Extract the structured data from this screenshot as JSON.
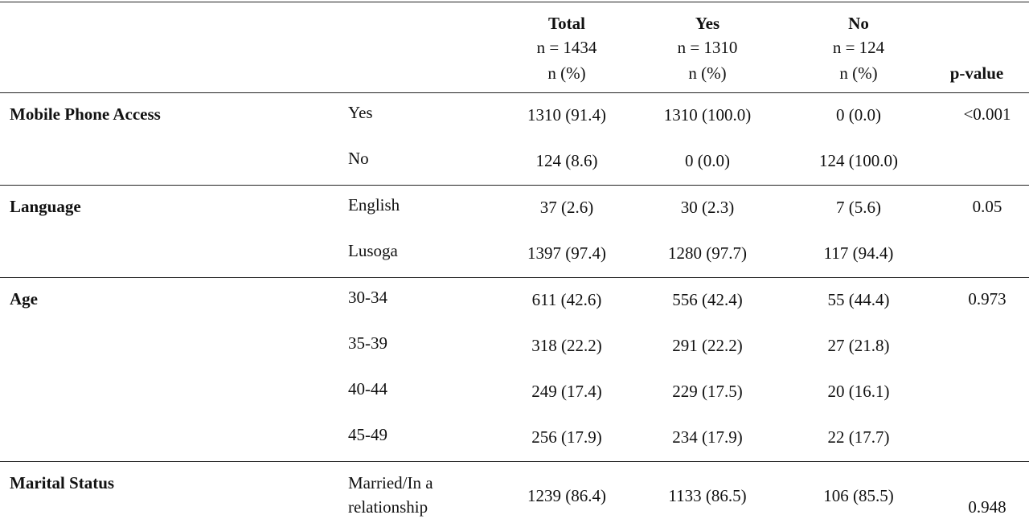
{
  "table": {
    "columns": [
      {
        "title": "Total",
        "n": "n = 1434",
        "unit": "n (%)"
      },
      {
        "title": "Yes",
        "n": "n = 1310",
        "unit": "n (%)"
      },
      {
        "title": "No",
        "n": "n = 124",
        "unit": "n (%)"
      }
    ],
    "p_value_header": "p-value",
    "groups": [
      {
        "label": "Mobile Phone Access",
        "p_value": "<0.001",
        "rows": [
          {
            "level": "Yes",
            "cells": [
              "1310 (91.4)",
              "1310 (100.0)",
              "0 (0.0)"
            ]
          },
          {
            "level": "No",
            "cells": [
              "124 (8.6)",
              "0 (0.0)",
              "124 (100.0)"
            ]
          }
        ]
      },
      {
        "label": "Language",
        "p_value": "0.05",
        "rows": [
          {
            "level": "English",
            "cells": [
              "37 (2.6)",
              "30 (2.3)",
              "7 (5.6)"
            ]
          },
          {
            "level": "Lusoga",
            "cells": [
              "1397 (97.4)",
              "1280 (97.7)",
              "117 (94.4)"
            ]
          }
        ]
      },
      {
        "label": "Age",
        "p_value": "0.973",
        "rows": [
          {
            "level": "30-34",
            "cells": [
              "611 (42.6)",
              "556 (42.4)",
              "55 (44.4)"
            ]
          },
          {
            "level": "35-39",
            "cells": [
              "318 (22.2)",
              "291 (22.2)",
              "27 (21.8)"
            ]
          },
          {
            "level": "40-44",
            "cells": [
              "249 (17.4)",
              "229 (17.5)",
              "20 (16.1)"
            ]
          },
          {
            "level": "45-49",
            "cells": [
              "256 (17.9)",
              "234 (17.9)",
              "22 (17.7)"
            ]
          }
        ]
      },
      {
        "label": "Marital Status",
        "p_value": "0.948",
        "rows": [
          {
            "level": "Married/In a relationship",
            "cells": [
              "1239 (86.4)",
              "1133 (86.5)",
              "106 (85.5)"
            ]
          }
        ]
      }
    ]
  }
}
